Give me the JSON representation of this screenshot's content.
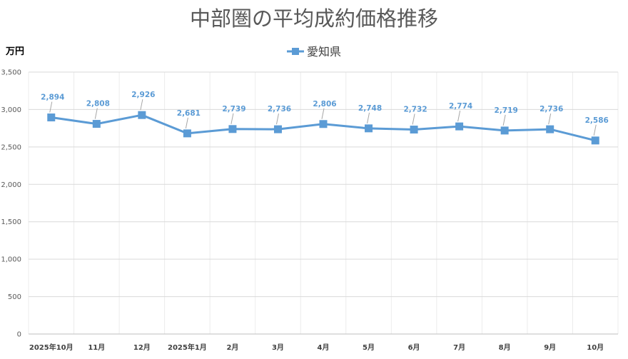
{
  "chart_data": {
    "type": "line",
    "title": "中部圏の平均成約価格推移",
    "ylabel": "万円",
    "xlabel": "",
    "categories": [
      "2025年10月",
      "11月",
      "12月",
      "2025年1月",
      "2月",
      "3月",
      "4月",
      "5月",
      "6月",
      "7月",
      "8月",
      "9月",
      "10月"
    ],
    "series": [
      {
        "name": "愛知県",
        "values": [
          2894,
          2808,
          2926,
          2681,
          2739,
          2736,
          2806,
          2748,
          2732,
          2774,
          2719,
          2736,
          2586
        ],
        "labels": [
          "2,894",
          "2,808",
          "2,926",
          "2,681",
          "2,739",
          "2,736",
          "2,806",
          "2,748",
          "2,732",
          "2,774",
          "2,719",
          "2,736",
          "2,586"
        ],
        "color": "#5b9bd5"
      }
    ],
    "ylim": [
      0,
      3500
    ],
    "yticks": [
      0,
      500,
      1000,
      1500,
      2000,
      2500,
      3000,
      3500
    ],
    "ytick_labels": [
      "0",
      "500",
      "1,000",
      "1,500",
      "2,000",
      "2,500",
      "3,000",
      "3,500"
    ],
    "grid": true,
    "legend_position": "top"
  }
}
